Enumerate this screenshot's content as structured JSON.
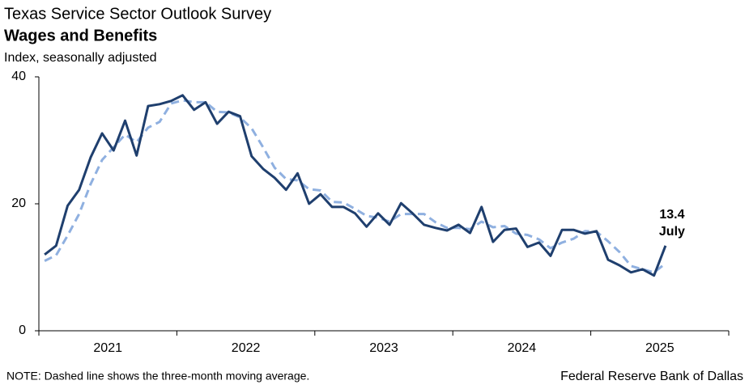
{
  "chart_data": {
    "type": "line",
    "title": "Texas Service Sector Outlook Survey",
    "subtitle": "Wages and Benefits",
    "y_label": "Index, seasonally adjusted",
    "year_labels": [
      "2021",
      "2022",
      "2023",
      "2024",
      "2025"
    ],
    "ylim": [
      0,
      40
    ],
    "yticks": [
      0,
      20,
      40
    ],
    "series": [
      {
        "name": "Index",
        "color": "#1f3f6e",
        "dashed": false,
        "values": [
          12.0,
          13.4,
          19.7,
          22.2,
          27.3,
          31.1,
          28.4,
          33.1,
          27.6,
          35.4,
          35.7,
          36.2,
          37.1,
          34.8,
          36.0,
          32.6,
          34.5,
          33.8,
          27.5,
          25.5,
          24.1,
          22.2,
          24.8,
          20.0,
          21.5,
          19.5,
          19.5,
          18.5,
          16.4,
          18.5,
          16.7,
          20.1,
          18.5,
          16.7,
          16.2,
          15.8,
          16.7,
          15.4,
          19.5,
          14.0,
          15.9,
          16.1,
          13.2,
          13.9,
          11.8,
          15.9,
          15.9,
          15.3,
          15.7,
          11.2,
          10.3,
          9.2,
          9.7,
          8.7,
          13.4
        ]
      },
      {
        "name": "Three-month moving average",
        "color": "#8fb0e0",
        "dashed": true,
        "values": [
          11.0,
          11.9,
          15.0,
          18.4,
          23.1,
          26.9,
          28.9,
          30.9,
          29.7,
          32.0,
          32.9,
          35.8,
          36.3,
          36.0,
          36.0,
          34.5,
          34.4,
          33.6,
          31.9,
          28.9,
          25.7,
          23.9,
          23.7,
          22.3,
          22.1,
          20.3,
          20.2,
          19.2,
          18.1,
          17.8,
          17.2,
          18.4,
          18.4,
          18.4,
          17.1,
          16.2,
          16.2,
          16.0,
          17.2,
          16.3,
          16.5,
          15.3,
          15.1,
          14.4,
          13.0,
          13.9,
          14.5,
          15.7,
          15.6,
          14.1,
          12.4,
          10.2,
          9.7,
          9.2,
          10.6
        ]
      }
    ],
    "annotation": "July",
    "note": "NOTE: Dashed line shows the three-month moving average.",
    "source": "Federal Reserve Bank of Dallas"
  }
}
